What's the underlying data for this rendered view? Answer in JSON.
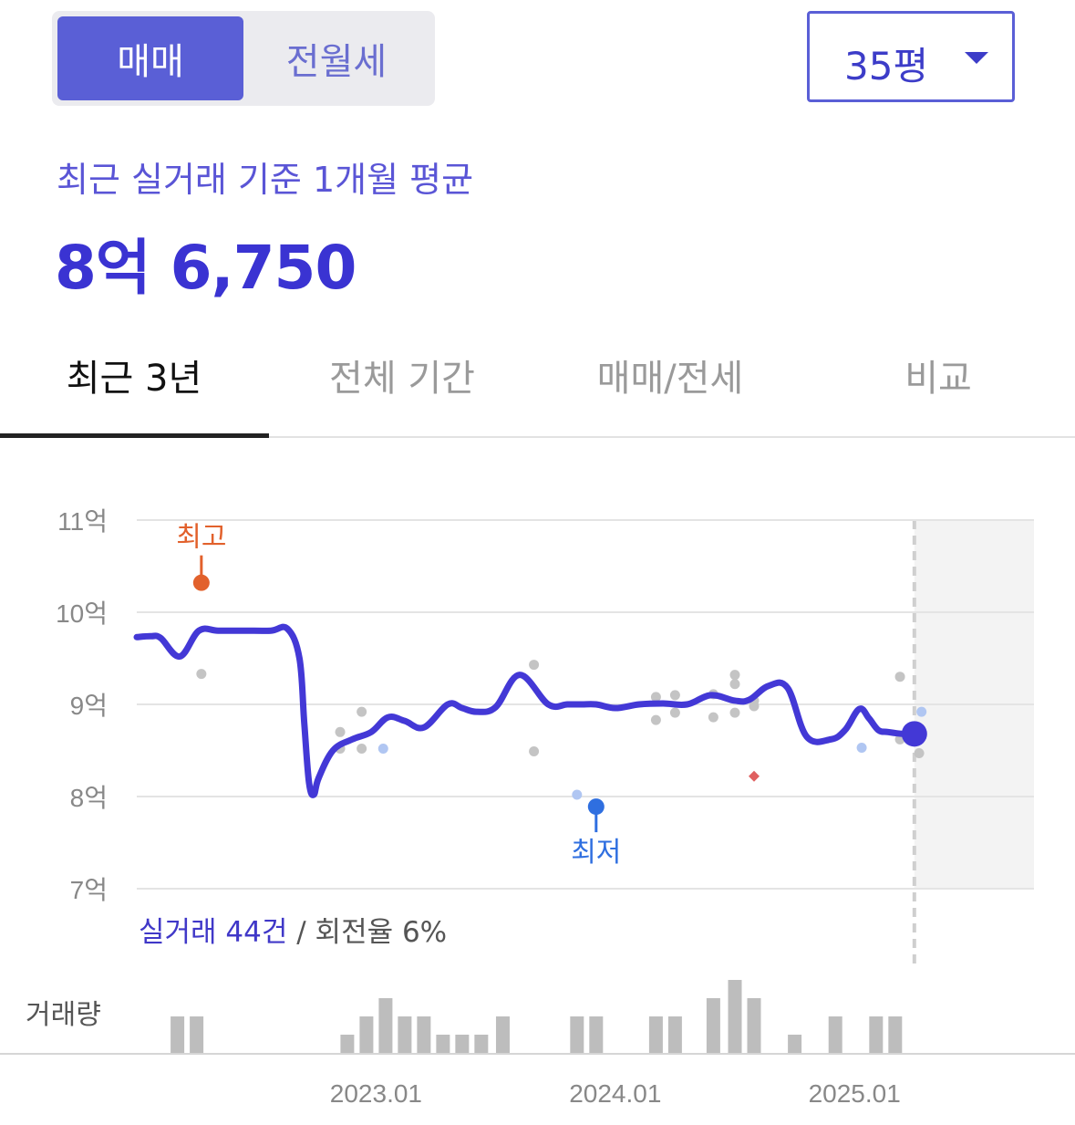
{
  "segment": {
    "options": [
      "매매",
      "전월세"
    ],
    "selected": "매매"
  },
  "size_select": {
    "value": "35평"
  },
  "summary": {
    "label": "최근 실거래 기준 1개월 평균",
    "price": "8억 6,750"
  },
  "tabs": [
    {
      "label": "최근 3년",
      "active": true
    },
    {
      "label": "전체 기간",
      "active": false
    },
    {
      "label": "매매/전세",
      "active": false
    },
    {
      "label": "비교",
      "active": false
    }
  ],
  "footnote": {
    "count_text": "실거래 44건",
    "rest_text": " / 회전율 6%"
  },
  "colors": {
    "accent": "#4338d6",
    "high": "#e2612c",
    "low": "#2f6fe0",
    "point": "#c4c4c4",
    "point_blue": "#b0c6f2",
    "diamond": "#e06060",
    "bar": "#bdbdbd"
  },
  "chart_data": {
    "type": "line",
    "y_unit": "억",
    "ylim": [
      7,
      11
    ],
    "yticks": [
      11,
      10,
      9,
      8,
      7
    ],
    "ytick_labels": [
      "11억",
      "10억",
      "9억",
      "8억",
      "7억"
    ],
    "xlim": [
      2022.0,
      2025.75
    ],
    "xticks": [
      2023.0,
      2024.0,
      2025.0
    ],
    "xtick_labels": [
      "2023.01",
      "2024.01",
      "2025.01"
    ],
    "forecast_start": 2025.25,
    "high_label": "최고",
    "low_label": "최저",
    "high_point": {
      "x": 2022.27,
      "y": 10.32
    },
    "low_point": {
      "x": 2023.92,
      "y": 7.89
    },
    "volume_label": "거래량",
    "series": [
      {
        "x": [
          2022.0,
          2022.06,
          2022.1,
          2022.18,
          2022.26,
          2022.34,
          2022.45,
          2022.56,
          2022.63,
          2022.68,
          2022.7,
          2022.72,
          2022.74,
          2022.76,
          2022.82,
          2022.9,
          2022.98,
          2023.05,
          2023.12,
          2023.2,
          2023.3,
          2023.36,
          2023.42,
          2023.5,
          2023.6,
          2023.72,
          2023.8,
          2023.86,
          2023.92,
          2024.0,
          2024.1,
          2024.2,
          2024.3,
          2024.4,
          2024.5,
          2024.56,
          2024.64,
          2024.72,
          2024.8,
          2024.9,
          2024.96,
          2025.02,
          2025.06,
          2025.1,
          2025.14,
          2025.2,
          2025.25
        ],
        "y": [
          9.73,
          9.74,
          9.72,
          9.52,
          9.8,
          9.8,
          9.8,
          9.8,
          9.82,
          9.5,
          8.8,
          8.15,
          8.02,
          8.2,
          8.5,
          8.62,
          8.7,
          8.86,
          8.82,
          8.75,
          9.0,
          8.96,
          8.92,
          8.97,
          9.32,
          9.0,
          9.0,
          9.0,
          9.0,
          8.96,
          9.0,
          9.01,
          9.0,
          9.1,
          9.04,
          9.05,
          9.2,
          9.18,
          8.65,
          8.62,
          8.72,
          8.95,
          8.85,
          8.72,
          8.7,
          8.68,
          8.68
        ]
      }
    ],
    "scatter_gray": [
      [
        2022.27,
        9.33
      ],
      [
        2022.85,
        8.7
      ],
      [
        2022.85,
        8.52
      ],
      [
        2022.94,
        8.52
      ],
      [
        2022.94,
        8.92
      ],
      [
        2023.66,
        9.43
      ],
      [
        2023.66,
        8.49
      ],
      [
        2024.17,
        9.08
      ],
      [
        2024.17,
        8.83
      ],
      [
        2024.25,
        9.1
      ],
      [
        2024.25,
        8.91
      ],
      [
        2024.41,
        9.11
      ],
      [
        2024.41,
        8.86
      ],
      [
        2024.5,
        9.32
      ],
      [
        2024.5,
        9.22
      ],
      [
        2024.5,
        8.91
      ],
      [
        2024.58,
        8.98
      ],
      [
        2024.58,
        9.04
      ],
      [
        2025.19,
        9.3
      ],
      [
        2025.19,
        8.62
      ],
      [
        2025.27,
        8.47
      ]
    ],
    "scatter_blue": [
      [
        2023.03,
        8.52
      ],
      [
        2023.84,
        8.02
      ],
      [
        2025.03,
        8.53
      ],
      [
        2025.28,
        8.92
      ]
    ],
    "diamond": [
      [
        2024.58,
        8.22
      ]
    ],
    "volume": [
      {
        "x": 2022.17,
        "v": 2
      },
      {
        "x": 2022.25,
        "v": 2
      },
      {
        "x": 2022.88,
        "v": 1
      },
      {
        "x": 2022.96,
        "v": 2
      },
      {
        "x": 2023.04,
        "v": 3
      },
      {
        "x": 2023.12,
        "v": 2
      },
      {
        "x": 2023.2,
        "v": 2
      },
      {
        "x": 2023.28,
        "v": 1
      },
      {
        "x": 2023.36,
        "v": 1
      },
      {
        "x": 2023.44,
        "v": 1
      },
      {
        "x": 2023.53,
        "v": 2
      },
      {
        "x": 2023.84,
        "v": 2
      },
      {
        "x": 2023.92,
        "v": 2
      },
      {
        "x": 2024.17,
        "v": 2
      },
      {
        "x": 2024.25,
        "v": 2
      },
      {
        "x": 2024.41,
        "v": 3
      },
      {
        "x": 2024.5,
        "v": 4
      },
      {
        "x": 2024.58,
        "v": 3
      },
      {
        "x": 2024.75,
        "v": 1
      },
      {
        "x": 2024.92,
        "v": 2
      },
      {
        "x": 2025.09,
        "v": 2
      },
      {
        "x": 2025.17,
        "v": 2
      }
    ]
  }
}
